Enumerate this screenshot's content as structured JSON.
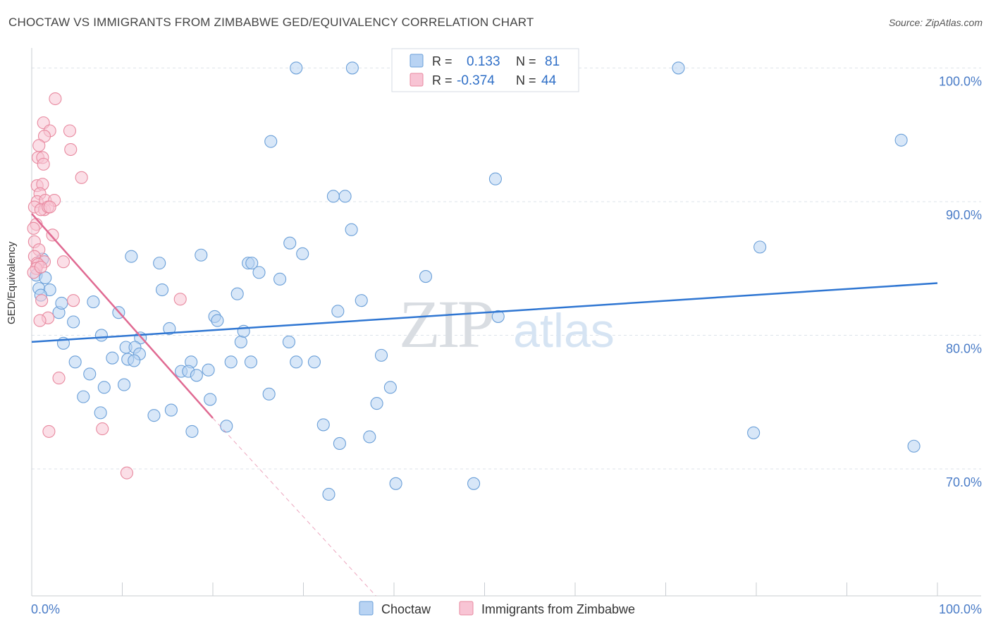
{
  "title": "CHOCTAW VS IMMIGRANTS FROM ZIMBABWE GED/EQUIVALENCY CORRELATION CHART",
  "source": "Source: ZipAtlas.com",
  "watermark": {
    "zip": "ZIP",
    "atlas": "atlas"
  },
  "colors": {
    "blue_fill": "#b8d3f3",
    "blue_stroke": "#6a9fd8",
    "blue_line": "#2f76d2",
    "pink_fill": "#f8c4d4",
    "pink_stroke": "#e8899f",
    "pink_line": "#e06a92",
    "axis_text": "#4a7cc7",
    "grid": "#dde3ea"
  },
  "legend": {
    "rows": [
      {
        "r_label": "R =",
        "r_value": "0.133",
        "n_label": "N =",
        "n_value": "81"
      },
      {
        "r_label": "R =",
        "r_value": "-0.374",
        "n_label": "N =",
        "n_value": "44"
      }
    ]
  },
  "chart_data": {
    "type": "scatter",
    "title": "CHOCTAW VS IMMIGRANTS FROM ZIMBABWE GED/EQUIVALENCY CORRELATION CHART",
    "xlabel": "",
    "ylabel": "GED/Equivalency",
    "xlim": [
      0,
      100
    ],
    "ylim": [
      60.5,
      101.5
    ],
    "x_tick_labels": [
      "0.0%",
      "100.0%"
    ],
    "y_ticks": [
      70,
      80,
      90,
      100
    ],
    "y_tick_labels": [
      "70.0%",
      "80.0%",
      "90.0%",
      "100.0%"
    ],
    "grid": true,
    "legend_position": "bottom",
    "series": [
      {
        "name": "Choctaw",
        "color": "blue",
        "R": 0.133,
        "N": 81,
        "trend": {
          "x0": 0,
          "y0": 79.5,
          "x1": 100,
          "y1": 83.9
        },
        "points": [
          [
            0.5,
            84.5
          ],
          [
            0.8,
            83.5
          ],
          [
            1.2,
            85.7
          ],
          [
            1.5,
            84.3
          ],
          [
            2.0,
            83.4
          ],
          [
            1.0,
            83.0
          ],
          [
            3.0,
            81.7
          ],
          [
            3.3,
            82.4
          ],
          [
            4.6,
            81.0
          ],
          [
            3.5,
            79.4
          ],
          [
            4.8,
            78.0
          ],
          [
            6.4,
            77.1
          ],
          [
            7.7,
            80.0
          ],
          [
            6.8,
            82.5
          ],
          [
            9.6,
            81.7
          ],
          [
            8.9,
            78.3
          ],
          [
            10.4,
            79.1
          ],
          [
            10.6,
            78.2
          ],
          [
            12.0,
            79.8
          ],
          [
            11.4,
            79.1
          ],
          [
            11.9,
            78.6
          ],
          [
            11.3,
            78.1
          ],
          [
            10.2,
            76.3
          ],
          [
            8.0,
            76.1
          ],
          [
            5.7,
            75.4
          ],
          [
            7.6,
            74.2
          ],
          [
            13.5,
            74.0
          ],
          [
            15.4,
            74.4
          ],
          [
            17.7,
            72.8
          ],
          [
            19.7,
            75.2
          ],
          [
            21.5,
            73.2
          ],
          [
            15.2,
            80.5
          ],
          [
            14.4,
            83.4
          ],
          [
            14.1,
            85.4
          ],
          [
            11.0,
            85.9
          ],
          [
            17.6,
            78.0
          ],
          [
            16.5,
            77.3
          ],
          [
            17.3,
            77.3
          ],
          [
            18.2,
            77.0
          ],
          [
            19.5,
            77.4
          ],
          [
            22.0,
            78.0
          ],
          [
            20.2,
            81.4
          ],
          [
            20.5,
            81.1
          ],
          [
            23.1,
            79.5
          ],
          [
            23.4,
            80.3
          ],
          [
            24.2,
            78.0
          ],
          [
            22.7,
            83.1
          ],
          [
            23.9,
            85.4
          ],
          [
            25.1,
            84.7
          ],
          [
            26.2,
            75.6
          ],
          [
            27.4,
            84.2
          ],
          [
            28.4,
            79.5
          ],
          [
            29.2,
            78.0
          ],
          [
            29.9,
            86.1
          ],
          [
            31.2,
            78.0
          ],
          [
            28.5,
            86.9
          ],
          [
            24.3,
            85.4
          ],
          [
            18.7,
            86.0
          ],
          [
            32.2,
            73.3
          ],
          [
            34.0,
            71.9
          ],
          [
            35.3,
            87.9
          ],
          [
            33.8,
            81.8
          ],
          [
            36.4,
            82.6
          ],
          [
            37.3,
            72.4
          ],
          [
            38.1,
            74.9
          ],
          [
            38.6,
            78.5
          ],
          [
            39.6,
            76.1
          ],
          [
            40.2,
            68.9
          ],
          [
            32.8,
            68.1
          ],
          [
            34.6,
            90.4
          ],
          [
            33.3,
            90.4
          ],
          [
            29.2,
            100.0
          ],
          [
            35.4,
            100.0
          ],
          [
            26.4,
            94.5
          ],
          [
            51.5,
            81.4
          ],
          [
            43.5,
            84.4
          ],
          [
            48.8,
            68.9
          ],
          [
            51.2,
            91.7
          ],
          [
            71.4,
            100.0
          ],
          [
            80.4,
            86.6
          ],
          [
            79.7,
            72.7
          ],
          [
            96.0,
            94.6
          ],
          [
            97.4,
            71.7
          ]
        ]
      },
      {
        "name": "Immigrants from Zimbabwe",
        "color": "pink",
        "R": -0.374,
        "N": 44,
        "trend": {
          "x0": 0,
          "y0": 89.1,
          "x1": 20,
          "y1": 73.8,
          "dash_x1": 38.0
        },
        "points": [
          [
            2.6,
            97.7
          ],
          [
            1.3,
            95.9
          ],
          [
            2.0,
            95.3
          ],
          [
            4.2,
            95.3
          ],
          [
            1.4,
            94.9
          ],
          [
            0.8,
            94.2
          ],
          [
            4.3,
            93.9
          ],
          [
            0.7,
            93.3
          ],
          [
            1.2,
            93.3
          ],
          [
            1.3,
            92.8
          ],
          [
            5.5,
            91.8
          ],
          [
            0.6,
            91.2
          ],
          [
            1.2,
            91.3
          ],
          [
            0.9,
            90.6
          ],
          [
            0.6,
            90.0
          ],
          [
            1.5,
            90.1
          ],
          [
            2.5,
            90.1
          ],
          [
            0.3,
            89.6
          ],
          [
            1.4,
            89.4
          ],
          [
            1.0,
            89.4
          ],
          [
            1.8,
            89.6
          ],
          [
            2.0,
            89.6
          ],
          [
            0.5,
            88.3
          ],
          [
            0.2,
            88.0
          ],
          [
            2.3,
            87.5
          ],
          [
            0.3,
            87.0
          ],
          [
            0.8,
            86.4
          ],
          [
            0.3,
            85.9
          ],
          [
            0.6,
            85.4
          ],
          [
            1.4,
            85.5
          ],
          [
            3.5,
            85.5
          ],
          [
            0.7,
            85.3
          ],
          [
            0.5,
            85.0
          ],
          [
            0.2,
            84.7
          ],
          [
            1.1,
            82.6
          ],
          [
            4.6,
            82.6
          ],
          [
            16.4,
            82.7
          ],
          [
            1.8,
            81.3
          ],
          [
            0.9,
            81.1
          ],
          [
            3.0,
            76.8
          ],
          [
            1.9,
            72.8
          ],
          [
            7.8,
            73.0
          ],
          [
            10.5,
            69.7
          ],
          [
            1.0,
            85.1
          ]
        ]
      }
    ]
  }
}
